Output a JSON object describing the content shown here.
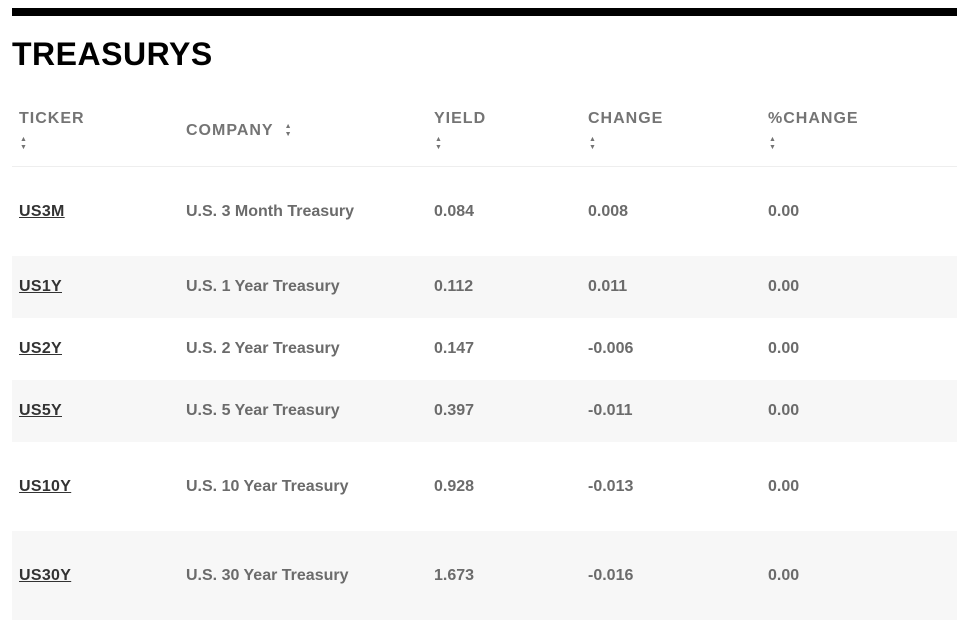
{
  "section": {
    "title": "TREASURYS"
  },
  "table": {
    "headers": {
      "ticker": "TICKER",
      "company": "COMPANY",
      "yield": "YIELD",
      "change": "CHANGE",
      "pct_change": "%CHANGE"
    },
    "rows": [
      {
        "ticker": "US3M",
        "company": "U.S. 3 Month Treasury",
        "yield": "0.084",
        "change": "0.008",
        "pct_change": "0.00"
      },
      {
        "ticker": "US1Y",
        "company": "U.S. 1 Year Treasury",
        "yield": "0.112",
        "change": "0.011",
        "pct_change": "0.00"
      },
      {
        "ticker": "US2Y",
        "company": "U.S. 2 Year Treasury",
        "yield": "0.147",
        "change": "-0.006",
        "pct_change": "0.00"
      },
      {
        "ticker": "US5Y",
        "company": "U.S. 5 Year Treasury",
        "yield": "0.397",
        "change": "-0.011",
        "pct_change": "0.00"
      },
      {
        "ticker": "US10Y",
        "company": "U.S. 10 Year Treasury",
        "yield": "0.928",
        "change": "-0.013",
        "pct_change": "0.00"
      },
      {
        "ticker": "US30Y",
        "company": "U.S. 30 Year Treasury",
        "yield": "1.673",
        "change": "-0.016",
        "pct_change": "0.00"
      }
    ]
  },
  "icons": {
    "sort": "sort-up-down-icon"
  },
  "colors": {
    "rule": "#000000",
    "header_text": "#747474",
    "cell_text": "#6b6b6b",
    "link_text": "#333333",
    "alt_row_bg": "#f7f7f7"
  }
}
